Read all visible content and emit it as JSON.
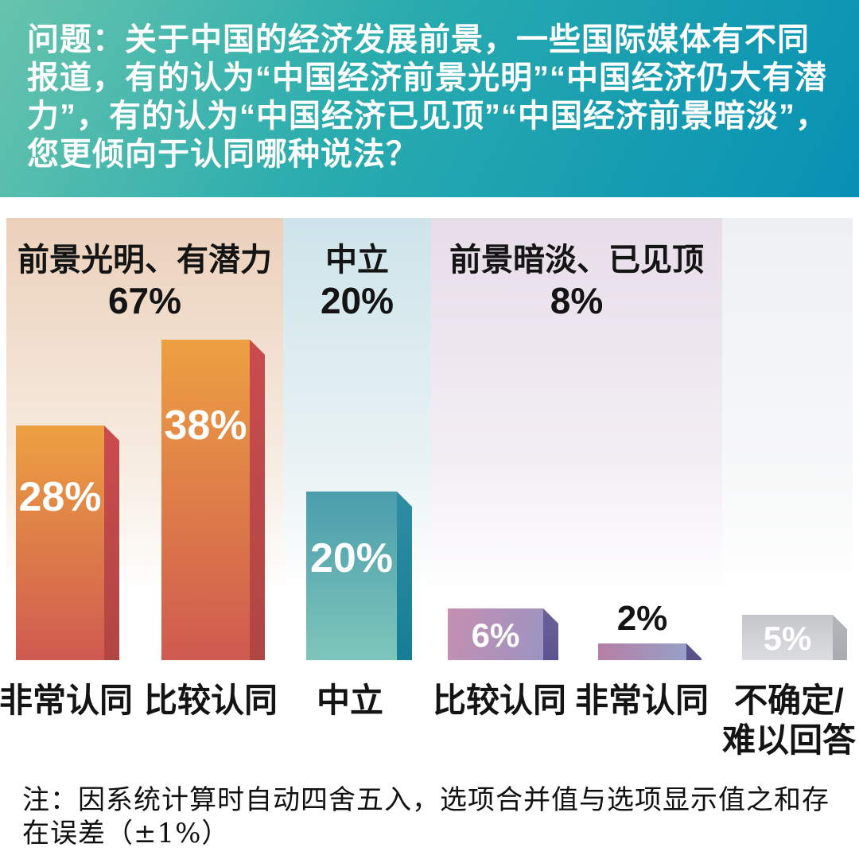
{
  "header": {
    "question": "问题：关于中国的经济发展前景，一些国际媒体有不同报道，有的认为“中国经济前景光明”“中国经济仍大有潜力”，有的认为“中国经济已见顶”“中国经济前景暗淡”，您更倾向于认同哪种说法？"
  },
  "groups": [
    {
      "label": "前景光明、有潜力",
      "pct": "67%"
    },
    {
      "label": "中立",
      "pct": "20%"
    },
    {
      "label": "前景暗淡、已见顶",
      "pct": "8%"
    }
  ],
  "bars": [
    {
      "category": "非常认同",
      "value": 28,
      "value_label": "28%"
    },
    {
      "category": "比较认同",
      "value": 38,
      "value_label": "38%"
    },
    {
      "category": "中立",
      "value": 20,
      "value_label": "20%"
    },
    {
      "category": "比较认同",
      "value": 6,
      "value_label": "6%"
    },
    {
      "category": "非常认同",
      "value": 2,
      "value_label": "2%"
    },
    {
      "category": "不确定/难以回答",
      "category_line1": "不确定/",
      "category_line2": "难以回答",
      "value": 5,
      "value_label": "5%"
    }
  ],
  "footnote": "注：因系统计算时自动四舍五入，选项合并值与选项显示值之和存在误差（±1%）",
  "colors": {
    "header_gradient_start": "#67c4ad",
    "header_gradient_mid": "#2aacae",
    "header_gradient_end": "#0790b4",
    "panel_bright": "#ebd0bb",
    "panel_neutral": "#cde4ea",
    "panel_dim": "#e7dde9",
    "panel_unsure": "#eef0f2",
    "bar_orange_top": "#eda041",
    "bar_orange_bottom": "#cf5a50",
    "bar_orange_edge": "#ca4b4f",
    "bar_teal_top": "#4a9dac",
    "bar_teal_bottom": "#7ec6ba",
    "bar_teal_edge": "#2f8da4",
    "bar_purple_left": "#c68fb0",
    "bar_purple_right": "#9b94c2",
    "bar_purple_edge": "#665d94",
    "bar_gray_top": "#c5c6c9",
    "bar_gray_bottom": "#dcdde0",
    "bar_gray_edge": "#aeb0b4",
    "text_dark": "#141414",
    "text_light": "#ffffff"
  },
  "chart_data": {
    "type": "bar",
    "title": "问题：关于中国的经济发展前景，一些国际媒体有不同报道，有的认为“中国经济前景光明”“中国经济仍大有潜力”，有的认为“中国经济已见顶”“中国经济前景暗淡”，您更倾向于认同哪种说法？",
    "unit": "%",
    "categories": [
      "非常认同",
      "比较认同",
      "中立",
      "比较认同",
      "非常认同",
      "不确定/难以回答"
    ],
    "values": [
      28,
      38,
      20,
      6,
      2,
      5
    ],
    "groups": [
      {
        "label": "前景光明、有潜力",
        "combined_pct": 67,
        "categories": [
          "非常认同",
          "比较认同"
        ]
      },
      {
        "label": "中立",
        "combined_pct": 20,
        "categories": [
          "中立"
        ]
      },
      {
        "label": "前景暗淡、已见顶",
        "combined_pct": 8,
        "categories": [
          "比较认同",
          "非常认同"
        ]
      },
      {
        "label": "",
        "categories": [
          "不确定/难以回答"
        ]
      }
    ],
    "legend": false,
    "grid": false,
    "footnote": "注：因系统计算时自动四舍五入，选项合并值与选项显示值之和存在误差（±1%）"
  }
}
